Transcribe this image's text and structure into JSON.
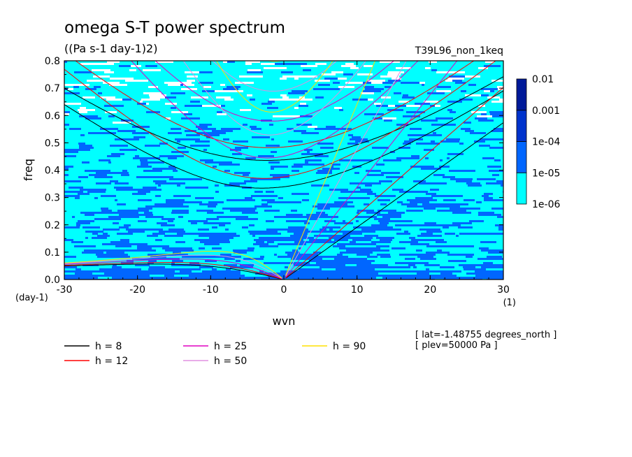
{
  "chart_data": {
    "type": "heatmap",
    "title": "omega S-T power spectrum",
    "subtitle": "((Pa s-1 day-1)2)",
    "run_label": "T39L96_non_1keq",
    "xlabel": "wvn",
    "ylabel": "freq",
    "x_unit": "(1)",
    "y_unit": "(day-1)",
    "xlim": [
      -30,
      30
    ],
    "ylim": [
      0,
      0.8
    ],
    "xticks": [
      -30,
      -20,
      -10,
      0,
      10,
      20,
      30
    ],
    "yticks": [
      0.0,
      0.1,
      0.2,
      0.3,
      0.4,
      0.5,
      0.6,
      0.7,
      0.8
    ],
    "xtick_labels": [
      "-30",
      "-20",
      "-10",
      "0",
      "10",
      "20",
      "30"
    ],
    "ytick_labels": [
      "0.0",
      "0.1",
      "0.2",
      "0.3",
      "0.4",
      "0.5",
      "0.6",
      "0.7",
      "0.8"
    ],
    "colorbar": {
      "levels": [
        "1e-06",
        "1e-05",
        "1e-04",
        "0.001",
        "0.01"
      ],
      "colors": [
        "#00ffff",
        "#0066ff",
        "#0033cc",
        "#001a99",
        "#4b0a9e"
      ]
    },
    "series": [
      {
        "name": "h =  8",
        "h": 8,
        "color": "#000000"
      },
      {
        "name": "h = 12",
        "h": 12,
        "color": "#ff0000"
      },
      {
        "name": "h = 25",
        "h": 25,
        "color": "#e000c0"
      },
      {
        "name": "h = 50",
        "h": 50,
        "color": "#e090e0"
      },
      {
        "name": "h = 90",
        "h": 90,
        "color": "#ffe000"
      }
    ],
    "annotations": [
      "[ lat=-1.48755 degrees_north ]",
      "[ plev=50000 Pa ]"
    ]
  }
}
